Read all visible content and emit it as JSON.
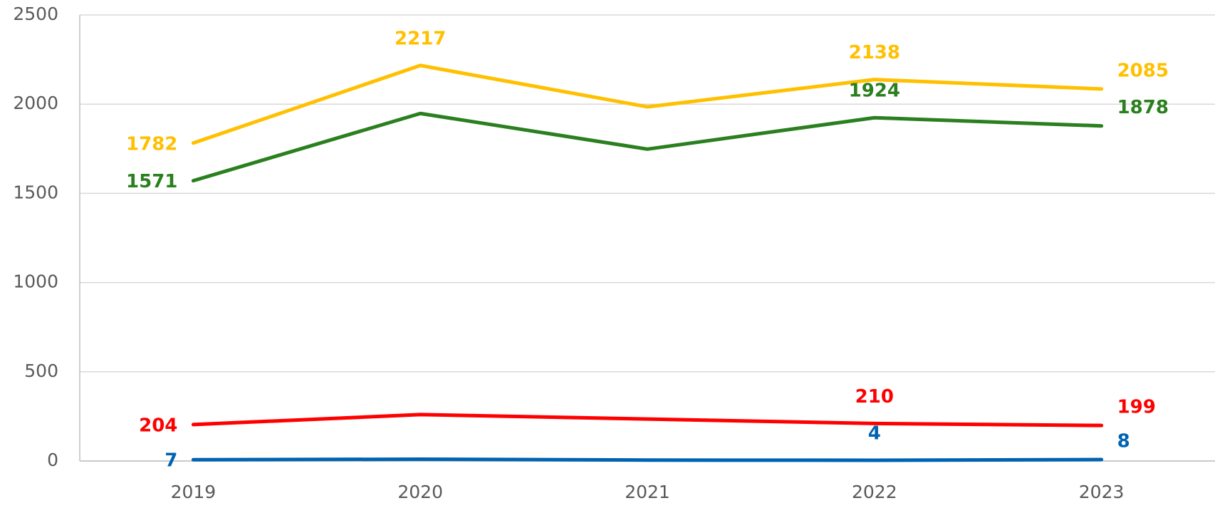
{
  "chart_data": {
    "type": "line",
    "categories": [
      "2019",
      "2020",
      "2021",
      "2022",
      "2023"
    ],
    "series": [
      {
        "color": "#0063b1",
        "values": [
          7,
          10,
          5,
          4,
          8
        ],
        "value_labels": [
          "7",
          null,
          null,
          "4",
          "8"
        ]
      },
      {
        "color": "#ff0000",
        "values": [
          204,
          260,
          235,
          210,
          199
        ],
        "value_labels": [
          "204",
          null,
          null,
          "210",
          "199"
        ]
      },
      {
        "color": "#2a7f1e",
        "values": [
          1571,
          1948,
          1748,
          1924,
          1878
        ],
        "value_labels": [
          "1571",
          null,
          null,
          "1924",
          "1878"
        ]
      },
      {
        "color": "#ffc000",
        "values": [
          1782,
          2217,
          1985,
          2138,
          2085
        ],
        "value_labels": [
          "1782",
          "2217",
          null,
          "2138",
          "2085"
        ]
      }
    ],
    "ylim": [
      0,
      2500
    ],
    "yticks": [
      0,
      500,
      1000,
      1500,
      2000,
      2500
    ],
    "grid": true
  }
}
